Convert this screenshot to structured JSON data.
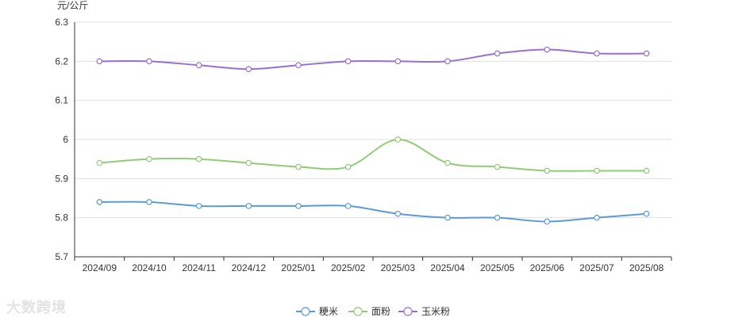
{
  "chart_data": {
    "type": "line",
    "title": "",
    "ylabel": "元/公斤",
    "xlabel": "",
    "categories": [
      "2024/09",
      "2024/10",
      "2024/11",
      "2024/12",
      "2025/01",
      "2025/02",
      "2025/03",
      "2025/04",
      "2025/05",
      "2025/06",
      "2025/07",
      "2025/08"
    ],
    "ylim": [
      5.7,
      6.3
    ],
    "yticks": [
      "5.7",
      "5.8",
      "5.9",
      "6",
      "6.1",
      "6.2",
      "6.3"
    ],
    "grid": true,
    "smooth": true,
    "legend_position": "bottom-center",
    "series": [
      {
        "name": "粳米",
        "color": "#5b9bd5",
        "values": [
          5.84,
          5.84,
          5.83,
          5.83,
          5.83,
          5.83,
          5.81,
          5.8,
          5.8,
          5.79,
          5.8,
          5.81
        ]
      },
      {
        "name": "面粉",
        "color": "#91cc75",
        "values": [
          5.94,
          5.95,
          5.95,
          5.94,
          5.93,
          5.93,
          6.0,
          5.94,
          5.93,
          5.92,
          5.92,
          5.92
        ]
      },
      {
        "name": "玉米粉",
        "color": "#9a6fd2",
        "values": [
          6.2,
          6.2,
          6.19,
          6.18,
          6.19,
          6.2,
          6.2,
          6.2,
          6.22,
          6.23,
          6.22,
          6.22
        ]
      }
    ]
  },
  "watermark": "大数跨境"
}
